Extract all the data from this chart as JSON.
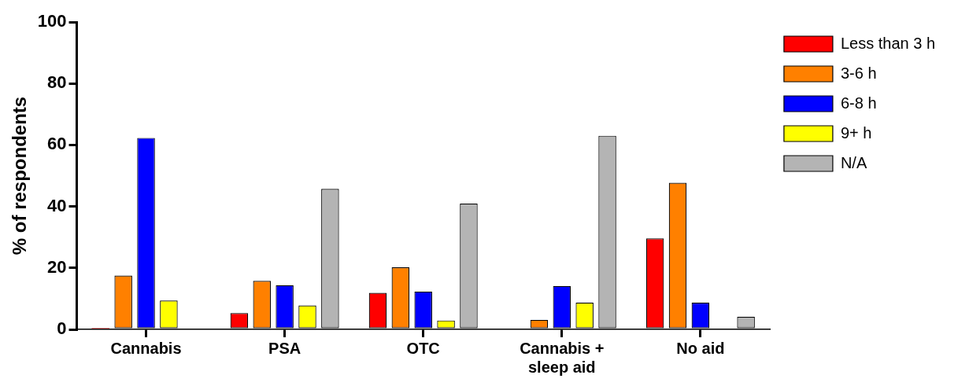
{
  "chart_data": {
    "type": "bar",
    "ylabel": "% of respondents",
    "categories": [
      "Cannabis",
      "PSA",
      "OTC",
      "Cannabis +\nsleep aid",
      "No aid"
    ],
    "series": [
      {
        "name": "Less than 3 h",
        "color": "#ff0000",
        "values": [
          0.5,
          5.3,
          11.9,
          null,
          29.6
        ]
      },
      {
        "name": "3-6 h",
        "color": "#ff8000",
        "values": [
          17.5,
          15.8,
          20.2,
          3.1,
          47.7
        ]
      },
      {
        "name": "6-8 h",
        "color": "#0000ff",
        "values": [
          62.3,
          14.4,
          12.3,
          14.1,
          8.7
        ]
      },
      {
        "name": "9+ h",
        "color": "#ffff00",
        "values": [
          9.4,
          7.8,
          2.9,
          8.7,
          null
        ]
      },
      {
        "name": "N/A",
        "color": "#b4b4b4",
        "values": [
          null,
          45.7,
          40.9,
          63.0,
          4.1
        ]
      }
    ],
    "ylim": [
      0,
      100
    ],
    "yticks": [
      0,
      20,
      40,
      60,
      80,
      100
    ],
    "grid": false,
    "legend": "right"
  }
}
